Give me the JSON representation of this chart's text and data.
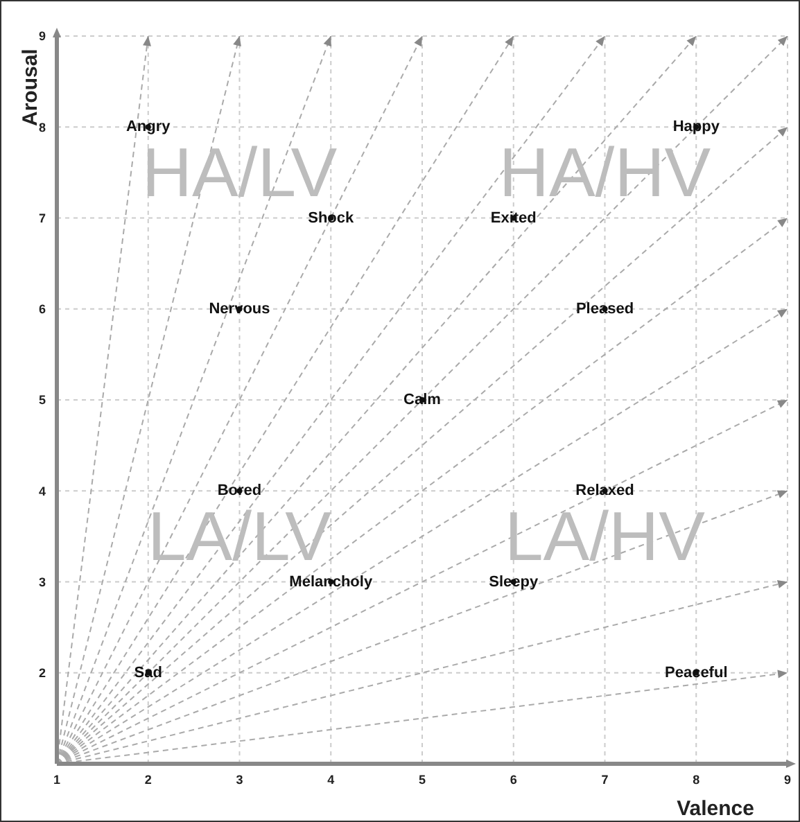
{
  "chart_data": {
    "type": "scatter",
    "xlabel": "Valence",
    "ylabel": "Arousal",
    "xlim": [
      1,
      9
    ],
    "ylim": [
      1,
      9
    ],
    "xticks": [
      1,
      2,
      3,
      4,
      5,
      6,
      7,
      8,
      9
    ],
    "yticks": [
      2,
      3,
      4,
      5,
      6,
      7,
      8,
      9
    ],
    "grid": true,
    "series": [
      {
        "type": "line",
        "color": "#aaaaaa",
        "line_style": "dashed",
        "x": [
          1,
          2
        ],
        "values": [
          1,
          9
        ]
      },
      {
        "type": "line",
        "color": "#aaaaaa",
        "line_style": "dashed",
        "x": [
          1,
          3
        ],
        "values": [
          1,
          9
        ]
      },
      {
        "type": "line",
        "color": "#aaaaaa",
        "line_style": "dashed",
        "x": [
          1,
          4
        ],
        "values": [
          1,
          9
        ]
      },
      {
        "type": "line",
        "color": "#aaaaaa",
        "line_style": "dashed",
        "x": [
          1,
          5
        ],
        "values": [
          1,
          9
        ]
      },
      {
        "type": "line",
        "color": "#aaaaaa",
        "line_style": "dashed",
        "x": [
          1,
          6
        ],
        "values": [
          1,
          9
        ]
      },
      {
        "type": "line",
        "color": "#aaaaaa",
        "line_style": "dashed",
        "x": [
          1,
          7
        ],
        "values": [
          1,
          9
        ]
      },
      {
        "type": "line",
        "color": "#aaaaaa",
        "line_style": "dashed",
        "x": [
          1,
          8
        ],
        "values": [
          1,
          9
        ]
      },
      {
        "type": "line",
        "color": "#aaaaaa",
        "line_style": "dashed",
        "x": [
          1,
          9
        ],
        "values": [
          1,
          9
        ]
      },
      {
        "type": "line",
        "color": "#aaaaaa",
        "line_style": "dashed",
        "x": [
          1,
          9
        ],
        "values": [
          1,
          8
        ]
      },
      {
        "type": "line",
        "color": "#aaaaaa",
        "line_style": "dashed",
        "x": [
          1,
          9
        ],
        "values": [
          1,
          7
        ]
      },
      {
        "type": "line",
        "color": "#aaaaaa",
        "line_style": "dashed",
        "x": [
          1,
          9
        ],
        "values": [
          1,
          6
        ]
      },
      {
        "type": "line",
        "color": "#aaaaaa",
        "line_style": "dashed",
        "x": [
          1,
          9
        ],
        "values": [
          1,
          5
        ]
      },
      {
        "type": "line",
        "color": "#aaaaaa",
        "line_style": "dashed",
        "x": [
          1,
          9
        ],
        "values": [
          1,
          4
        ]
      },
      {
        "type": "line",
        "color": "#aaaaaa",
        "line_style": "dashed",
        "x": [
          1,
          9
        ],
        "values": [
          1,
          3
        ]
      },
      {
        "type": "line",
        "color": "#aaaaaa",
        "line_style": "dashed",
        "x": [
          1,
          9
        ],
        "values": [
          1,
          2
        ]
      },
      {
        "color": "#111111",
        "marker": "circle",
        "x": [
          2,
          8,
          4,
          6,
          3,
          7,
          5,
          3,
          7,
          4,
          6,
          2,
          8
        ],
        "values": [
          8,
          8,
          7,
          7,
          6,
          6,
          5,
          4,
          4,
          3,
          3,
          2,
          2
        ],
        "value_labels": [
          "Angry",
          "Happy",
          "Shock",
          "Exited",
          "Nervous",
          "Pleased",
          "Calm",
          "Bored",
          "Relaxed",
          "Melancholy",
          "Sleepy",
          "Sad",
          "Peaceful"
        ]
      }
    ],
    "annotations": [
      "HA/LV",
      "HA/HV",
      "LA/LV",
      "LA/HV"
    ]
  }
}
